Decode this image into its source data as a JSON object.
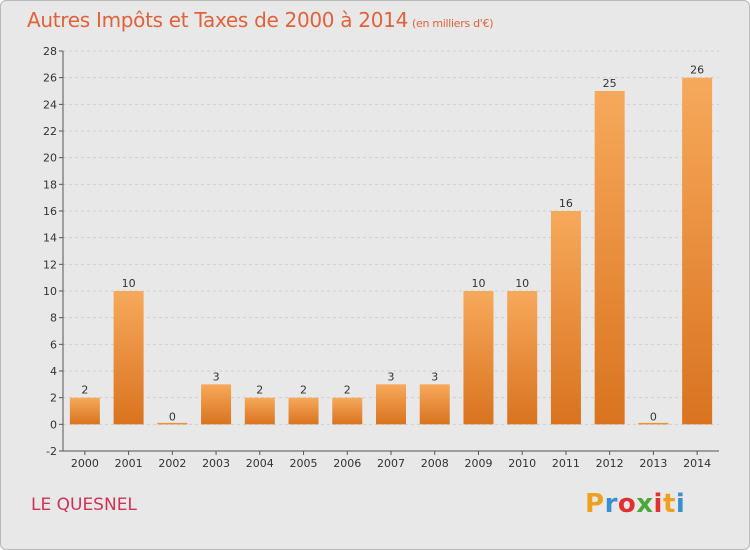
{
  "title": "Autres Impôts et Taxes de 2000 à 2014",
  "subtitle": "(en milliers d'€)",
  "place": "LE QUESNEL",
  "logo": {
    "letters": [
      "P",
      "r",
      "o",
      "x",
      "i",
      "t",
      "i"
    ],
    "colors": [
      "#f0a020",
      "#3a8fd0",
      "#e03030",
      "#4aa83a",
      "#e03030",
      "#f0a020",
      "#3a8fd0"
    ]
  },
  "colors": {
    "bar_light": "#f7a95b",
    "bar_dark": "#d9731f",
    "title": "#e0623a",
    "place": "#cc3355"
  },
  "chart_data": {
    "type": "bar",
    "title": "Autres Impôts et Taxes de 2000 à 2014",
    "subtitle": "(en milliers d'€)",
    "xlabel": "",
    "ylabel": "",
    "categories": [
      "2000",
      "2001",
      "2002",
      "2003",
      "2004",
      "2005",
      "2006",
      "2007",
      "2008",
      "2009",
      "2010",
      "2011",
      "2012",
      "2013",
      "2014"
    ],
    "values": [
      2,
      10,
      0,
      3,
      2,
      2,
      2,
      3,
      3,
      10,
      10,
      16,
      25,
      0,
      26
    ],
    "ylim": [
      -2,
      28
    ],
    "yticks": [
      -2,
      0,
      2,
      4,
      6,
      8,
      10,
      12,
      14,
      16,
      18,
      20,
      22,
      24,
      26,
      28
    ],
    "grid": true,
    "legend": "none"
  }
}
